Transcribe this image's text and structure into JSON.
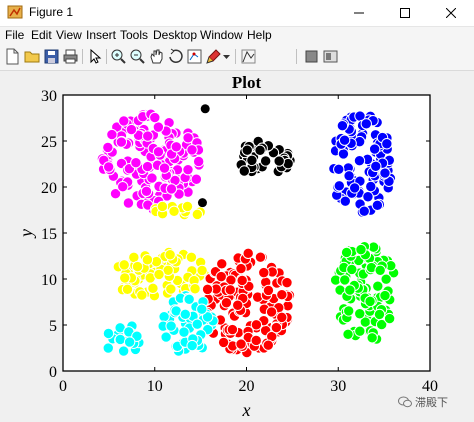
{
  "window": {
    "title": "Figure 1",
    "controls": [
      "minimize-icon",
      "maximize-icon",
      "close-icon"
    ]
  },
  "menu": {
    "items": [
      {
        "label": "File"
      },
      {
        "label": "Edit"
      },
      {
        "label": "View"
      },
      {
        "label": "Insert"
      },
      {
        "label": "Tools"
      },
      {
        "label": "Desktop"
      },
      {
        "label": "Window"
      },
      {
        "label": "Help"
      }
    ]
  },
  "toolbar": {
    "icons": [
      "new-figure-icon",
      "open-file-icon",
      "save-icon",
      "print-icon",
      "pointer-icon",
      "zoom-in-icon",
      "zoom-out-icon",
      "pan-icon",
      "rotate-3d-icon",
      "data-cursor-icon",
      "brush-icon",
      "colorbar-icon",
      "legend-icon"
    ]
  },
  "watermark": {
    "text": "滞殿下"
  },
  "chart_data": {
    "type": "scatter",
    "title": "Plot",
    "xlabel": "x",
    "ylabel": "y",
    "xlim": [
      0,
      40
    ],
    "ylim": [
      0,
      30
    ],
    "xticks": [
      0,
      10,
      20,
      30,
      40
    ],
    "yticks": [
      0,
      5,
      10,
      15,
      20,
      25,
      30
    ],
    "grid": false,
    "legend": "none",
    "series": [
      {
        "color": "#ff00ff",
        "cluster": {
          "cx": 9.5,
          "cy": 23.0,
          "rx": 5.5,
          "ry": 5.5
        }
      },
      {
        "color": "#ffff00",
        "cluster": {
          "cx": 12.5,
          "cy": 17.5,
          "rx": 3.0,
          "ry": 0.7
        }
      },
      {
        "color": "#000000",
        "cluster": {
          "cx": 21.5,
          "cy": 23.0,
          "rx": 3.5,
          "ry": 2.0
        }
      },
      {
        "color": "#0000ff",
        "cluster": {
          "cx": 32.5,
          "cy": 22.5,
          "rx": 3.5,
          "ry": 5.5
        }
      },
      {
        "color": "#00ff00",
        "cluster": {
          "cx": 33.0,
          "cy": 8.5,
          "rx": 3.5,
          "ry": 5.5
        }
      },
      {
        "color": "#ffff00",
        "cluster": {
          "cx": 10.5,
          "cy": 10.5,
          "rx": 5.5,
          "ry": 2.5
        }
      },
      {
        "color": "#ff0000",
        "cluster": {
          "cx": 20.0,
          "cy": 7.5,
          "rx": 4.8,
          "ry": 5.5
        }
      },
      {
        "color": "#00ffff",
        "cluster": {
          "cx": 13.5,
          "cy": 5.0,
          "rx": 3.0,
          "ry": 3.2
        }
      },
      {
        "color": "#00ffff",
        "cluster": {
          "cx": 6.5,
          "cy": 3.5,
          "rx": 2.0,
          "ry": 1.7
        }
      }
    ],
    "points": [
      {
        "x": 15.5,
        "y": 28.5,
        "color": "#000000"
      },
      {
        "x": 15.2,
        "y": 18.3,
        "color": "#000000"
      }
    ]
  }
}
